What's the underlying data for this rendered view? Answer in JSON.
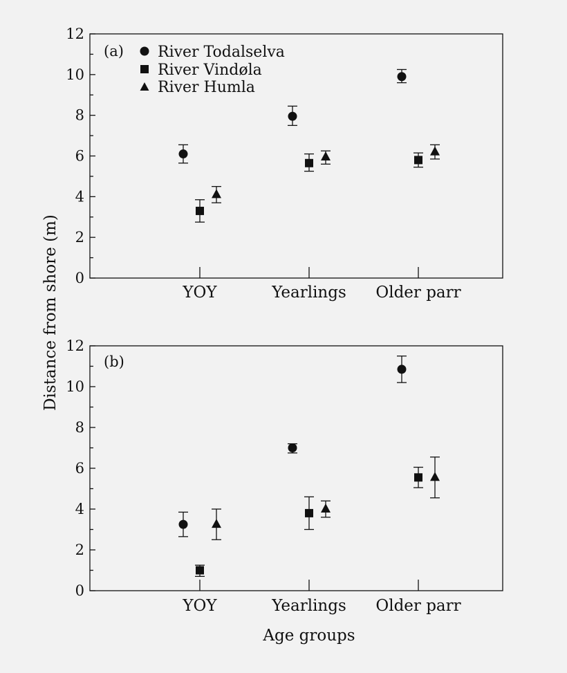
{
  "chart_data": {
    "type": "scatter",
    "ylabel": "Distance from shore (m)",
    "xlabel": "Age groups",
    "categories": [
      "YOY",
      "Yearlings",
      "Older parr"
    ],
    "ylim": [
      0,
      12
    ],
    "yticks": [
      0,
      2,
      4,
      6,
      8,
      10,
      12
    ],
    "legend": {
      "placement": "top-left (panel a)",
      "entries": [
        {
          "name": "River Todalselva",
          "marker": "circle"
        },
        {
          "name": "River Vindøla",
          "marker": "square"
        },
        {
          "name": "River Humla",
          "marker": "triangle"
        }
      ]
    },
    "panels": [
      {
        "tag": "(a)",
        "series": [
          {
            "name": "River Todalselva",
            "marker": "circle",
            "values": [
              6.1,
              7.95,
              9.9
            ],
            "err_low": [
              5.65,
              7.5,
              9.6
            ],
            "err_high": [
              6.55,
              8.45,
              10.25
            ]
          },
          {
            "name": "River Vindøla",
            "marker": "square",
            "values": [
              3.3,
              5.65,
              5.8
            ],
            "err_low": [
              2.75,
              5.25,
              5.45
            ],
            "err_high": [
              3.85,
              6.1,
              6.15
            ]
          },
          {
            "name": "River Humla",
            "marker": "triangle",
            "values": [
              4.1,
              5.95,
              6.2
            ],
            "err_low": [
              3.7,
              5.6,
              5.85
            ],
            "err_high": [
              4.5,
              6.25,
              6.55
            ]
          }
        ]
      },
      {
        "tag": "(b)",
        "series": [
          {
            "name": "River Todalselva",
            "marker": "circle",
            "values": [
              3.25,
              7.0,
              10.85
            ],
            "err_low": [
              2.65,
              6.75,
              10.2
            ],
            "err_high": [
              3.85,
              7.2,
              11.5
            ]
          },
          {
            "name": "River Vindøla",
            "marker": "square",
            "values": [
              1.0,
              3.8,
              5.55
            ],
            "err_low": [
              0.7,
              3.0,
              5.05
            ],
            "err_high": [
              1.25,
              4.6,
              6.05
            ]
          },
          {
            "name": "River Humla",
            "marker": "triangle",
            "values": [
              3.25,
              4.0,
              5.55
            ],
            "err_low": [
              2.5,
              3.6,
              4.55
            ],
            "err_high": [
              4.0,
              4.4,
              6.55
            ]
          }
        ]
      }
    ]
  }
}
